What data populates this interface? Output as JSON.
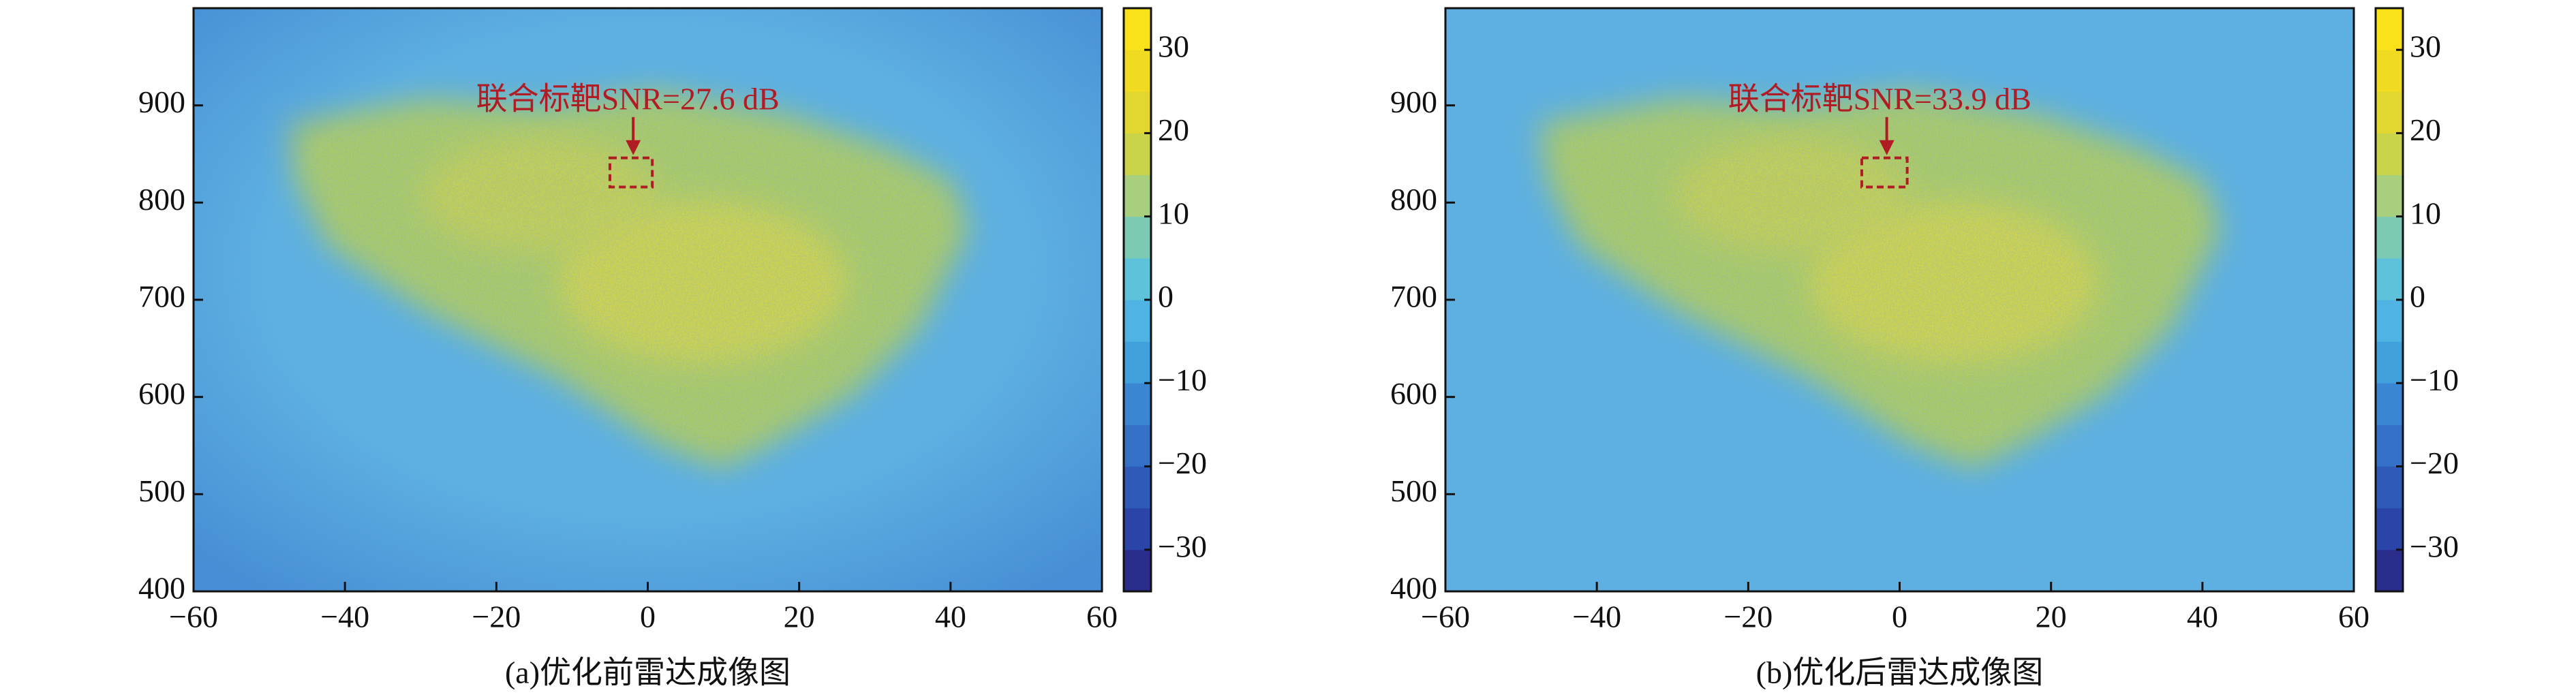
{
  "chart_data": [
    {
      "type": "image",
      "caption": "(a)优化前雷达成像图",
      "annotation": "联合标靶SNR=27.6 dB",
      "target_box": {
        "x": [
          -5,
          0.6
        ],
        "y": [
          816,
          846
        ]
      },
      "xlim": [
        -60,
        60
      ],
      "xticks": [
        {
          "value": -60,
          "label": "−60"
        },
        {
          "value": -40,
          "label": "−40"
        },
        {
          "value": -20,
          "label": "−20"
        },
        0,
        20,
        40,
        60
      ],
      "ylim": [
        400,
        1000
      ],
      "yticks": [
        400,
        500,
        600,
        700,
        800,
        900
      ],
      "clim": [
        -35,
        35
      ],
      "cticks": [
        {
          "value": -30,
          "label": "−30"
        },
        {
          "value": -20,
          "label": "−20"
        },
        {
          "value": -10,
          "label": "−10"
        },
        0,
        10,
        20,
        30
      ],
      "colormap": [
        "#2a2d8c",
        "#2a44a8",
        "#2f5ab8",
        "#3470c6",
        "#3a86d2",
        "#42a0dd",
        "#4fb4e3",
        "#5ec3da",
        "#7ccab4",
        "#a7cf7e",
        "#c9d44a",
        "#e2d630",
        "#f1da22",
        "#f9e21a"
      ]
    },
    {
      "type": "image",
      "caption": "(b)优化后雷达成像图",
      "annotation": "联合标靶SNR=33.9 dB",
      "target_box": {
        "x": [
          -5,
          1
        ],
        "y": [
          816,
          846
        ]
      },
      "xlim": [
        -60,
        60
      ],
      "xticks": [
        {
          "value": -60,
          "label": "−60"
        },
        {
          "value": -40,
          "label": "−40"
        },
        {
          "value": -20,
          "label": "−20"
        },
        0,
        20,
        40,
        60
      ],
      "ylim": [
        400,
        1000
      ],
      "yticks": [
        400,
        500,
        600,
        700,
        800,
        900
      ],
      "clim": [
        -35,
        35
      ],
      "cticks": [
        {
          "value": -30,
          "label": "−30"
        },
        {
          "value": -20,
          "label": "−20"
        },
        {
          "value": -10,
          "label": "−10"
        },
        0,
        10,
        20,
        30
      ],
      "colormap": [
        "#2a2d8c",
        "#2a44a8",
        "#2f5ab8",
        "#3470c6",
        "#3a86d2",
        "#42a0dd",
        "#4fb4e3",
        "#5ec3da",
        "#7ccab4",
        "#a7cf7e",
        "#c9d44a",
        "#e2d630",
        "#f1da22",
        "#f9e21a"
      ]
    }
  ]
}
